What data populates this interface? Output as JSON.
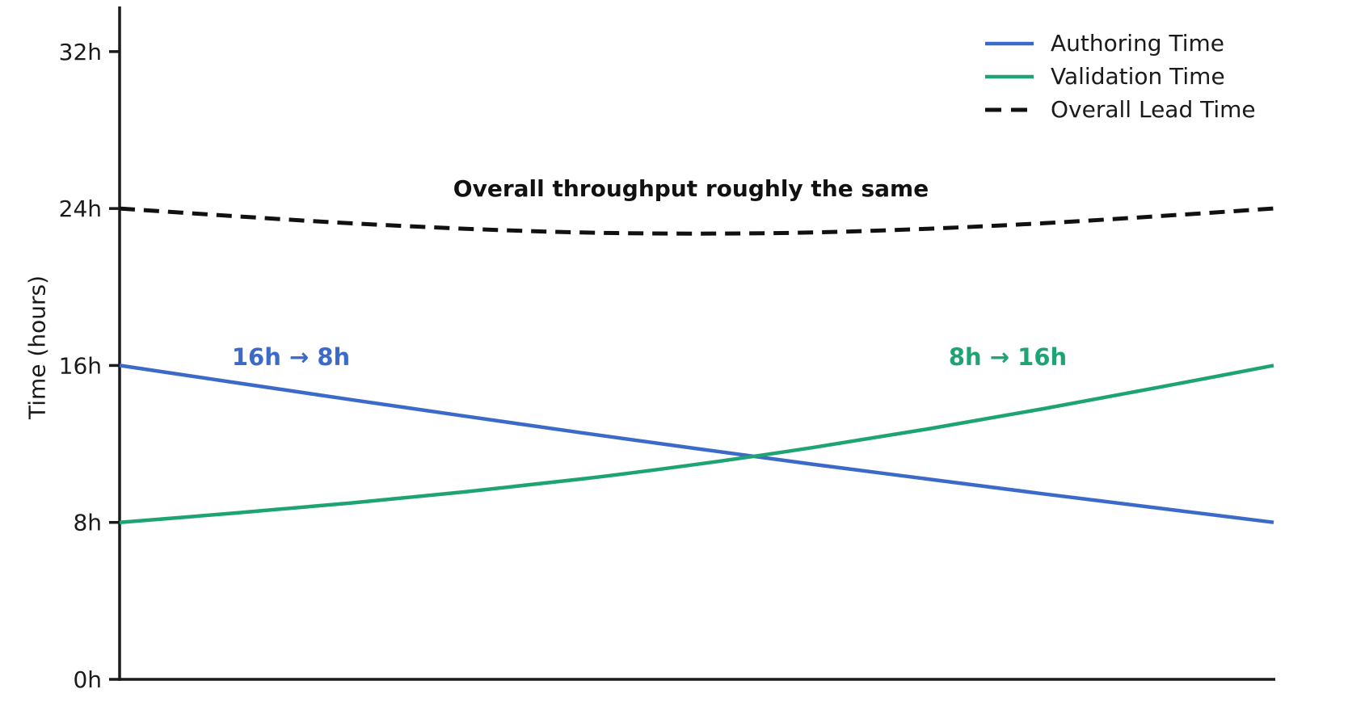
{
  "chart_data": {
    "type": "line",
    "title": "",
    "xlabel": "",
    "ylabel": "Time (hours)",
    "ylim": [
      0,
      34.3
    ],
    "grid": false,
    "legend_position": "top-right",
    "yticks": [
      {
        "value": 0,
        "label": "0h"
      },
      {
        "value": 8,
        "label": "8h"
      },
      {
        "value": 16,
        "label": "16h"
      },
      {
        "value": 24,
        "label": "24h"
      },
      {
        "value": 32,
        "label": "32h"
      }
    ],
    "xticks": [],
    "x": [
      0,
      0.1,
      0.2,
      0.3,
      0.4,
      0.5,
      0.6,
      0.7,
      0.8,
      0.9,
      1
    ],
    "series": [
      {
        "name": "Authoring Time",
        "color": "#3c6ac9",
        "style": "solid",
        "values": [
          16,
          15.13,
          14.26,
          13.41,
          12.57,
          11.76,
          10.97,
          10.21,
          9.46,
          8.73,
          8
        ]
      },
      {
        "name": "Validation Time",
        "color": "#1ea472",
        "style": "solid",
        "values": [
          8,
          8.48,
          8.99,
          9.56,
          10.21,
          10.96,
          11.81,
          12.76,
          13.79,
          14.88,
          16
        ]
      },
      {
        "name": "Overall Lead Time",
        "color": "#111111",
        "style": "dashed",
        "values": [
          24,
          23.61,
          23.25,
          22.97,
          22.78,
          22.72,
          22.78,
          22.97,
          23.25,
          23.61,
          24
        ]
      }
    ],
    "annotations": [
      {
        "text": "Overall throughput roughly the same",
        "color": "#111111"
      },
      {
        "text": "16h → 8h",
        "color": "#3c6ac9"
      },
      {
        "text": "8h → 16h",
        "color": "#1ea472"
      }
    ]
  }
}
